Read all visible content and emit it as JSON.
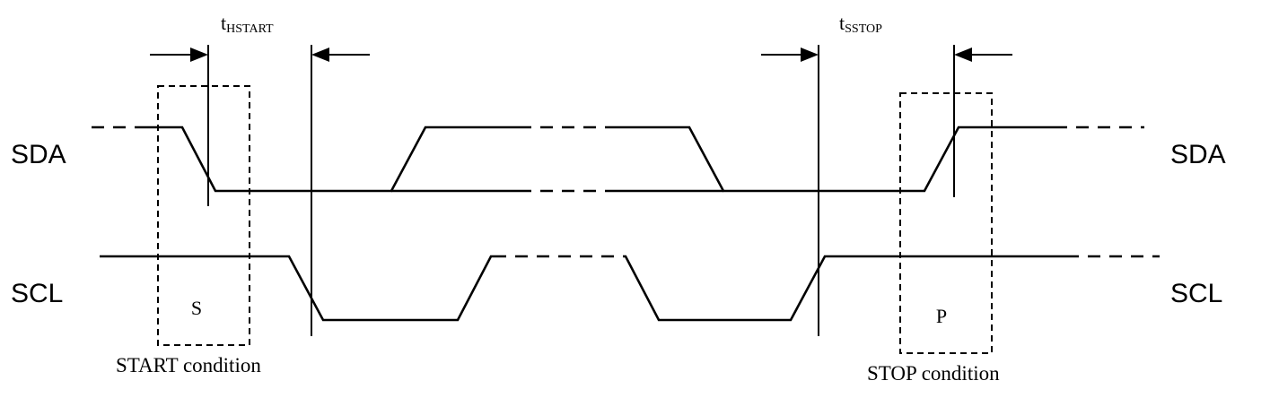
{
  "signals": {
    "sda_left": "SDA",
    "sda_right": "SDA",
    "scl_left": "SCL",
    "scl_right": "SCL"
  },
  "timing": {
    "hstart": {
      "main": "t",
      "sub": "HSTART"
    },
    "sstop": {
      "main": "t",
      "sub": "SSTOP"
    }
  },
  "boxes": {
    "start_letter": "S",
    "stop_letter": "P"
  },
  "conditions": {
    "start": "START condition",
    "stop": "STOP condition"
  }
}
